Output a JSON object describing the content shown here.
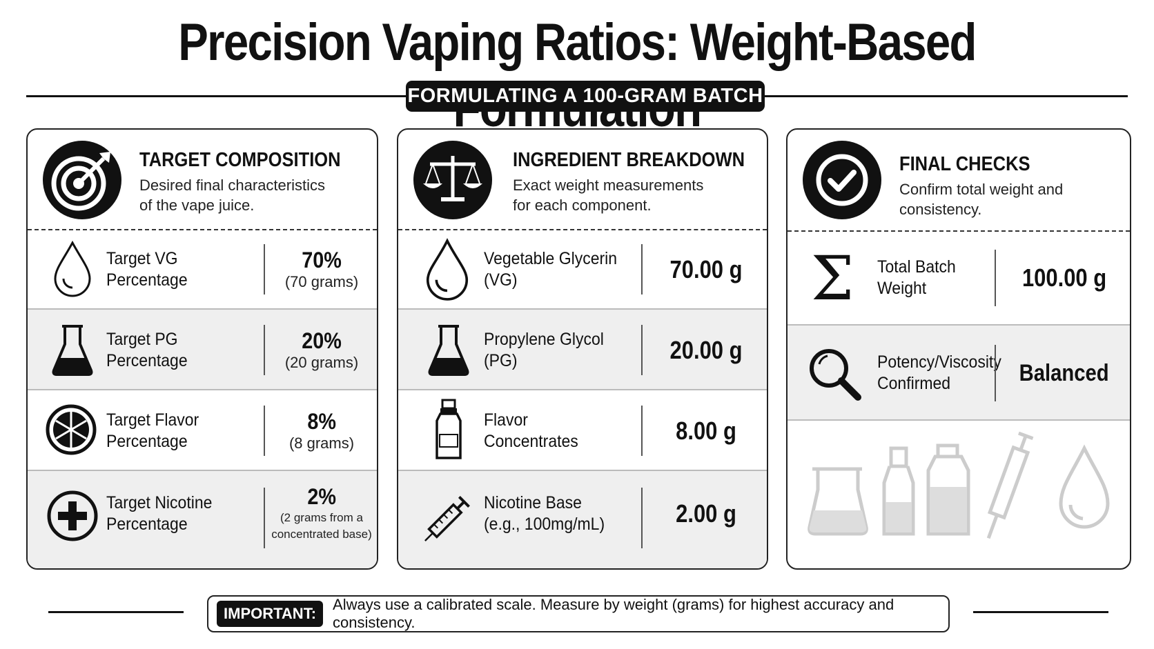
{
  "title": "Precision Vaping Ratios: Weight-Based Formulation",
  "subtitle": "FORMULATING A 100-GRAM BATCH",
  "panels": {
    "target": {
      "title": "TARGET COMPOSITION",
      "description": "Desired final characteristics of the vape juice.",
      "rows": [
        {
          "label": "Target VG Percentage",
          "value": "70%",
          "sub": "(70 grams)",
          "icon": "droplet-icon"
        },
        {
          "label": "Target PG Percentage",
          "value": "20%",
          "sub": "(20 grams)",
          "icon": "beaker-icon"
        },
        {
          "label": "Target Flavor Percentage",
          "value": "8%",
          "sub": "(8 grams)",
          "icon": "citrus-icon"
        },
        {
          "label": "Target Nicotine Percentage",
          "value": "2%",
          "sub": "(2 grams from a concentrated base)",
          "icon": "plus-circle-icon"
        }
      ]
    },
    "ingredients": {
      "title": "INGREDIENT BREAKDOWN",
      "description": "Exact weight measurements for each component.",
      "rows": [
        {
          "label": "Vegetable Glycerin (VG)",
          "value": "70.00 g",
          "icon": "droplet-icon"
        },
        {
          "label": "Propylene Glycol (PG)",
          "value": "20.00 g",
          "icon": "beaker-icon"
        },
        {
          "label": "Flavor Concentrates",
          "value": "8.00 g",
          "icon": "bottle-icon"
        },
        {
          "label": "Nicotine Base (e.g., 100mg/mL)",
          "value": "2.00 g",
          "icon": "syringe-icon"
        }
      ]
    },
    "checks": {
      "title": "FINAL CHECKS",
      "description": "Confirm total weight and consistency.",
      "rows": [
        {
          "label": "Total Batch Weight",
          "value": "100.00 g",
          "icon": "sigma-icon"
        },
        {
          "label": "Potency/Viscosity Confirmed",
          "value": "Balanced",
          "icon": "magnifier-icon"
        }
      ]
    }
  },
  "footer": {
    "badge": "IMPORTANT:",
    "text": "Always use a calibrated scale. Measure by weight (grams) for highest accuracy and consistency."
  }
}
